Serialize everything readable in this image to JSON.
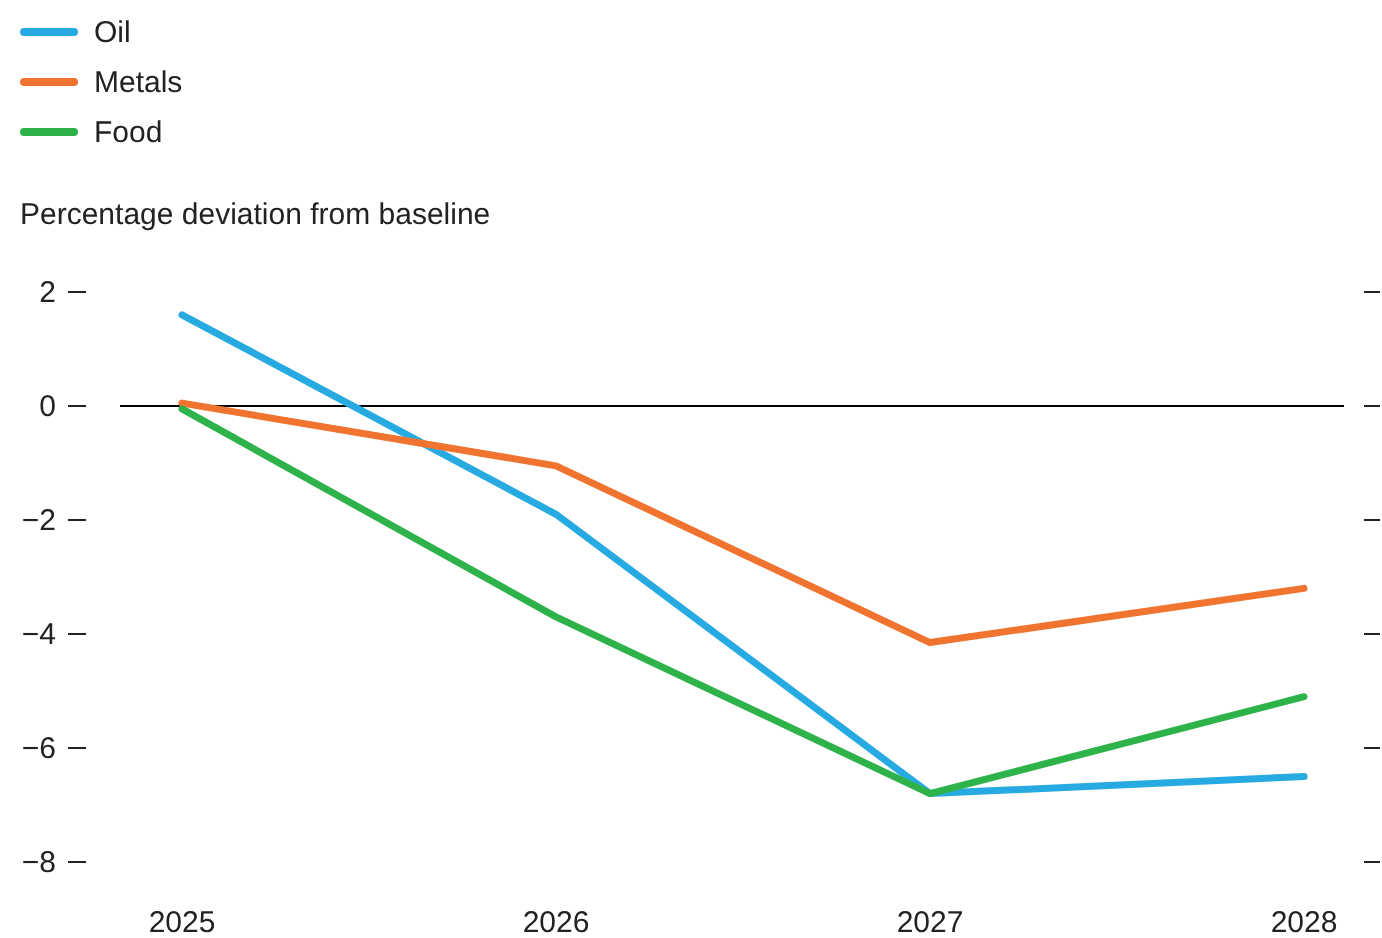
{
  "chart_data": {
    "type": "line",
    "ylabel": "Percentage deviation from baseline",
    "categories": [
      "2025",
      "2026",
      "2027",
      "2028"
    ],
    "series": [
      {
        "name": "Oil",
        "color": "#27aae1",
        "values": [
          1.6,
          -1.9,
          -6.8,
          -6.5
        ]
      },
      {
        "name": "Metals",
        "color": "#f07430",
        "values": [
          0.05,
          -1.05,
          -4.15,
          -3.2
        ]
      },
      {
        "name": "Food",
        "color": "#2eb24a",
        "values": [
          -0.05,
          -3.7,
          -6.8,
          -5.1
        ]
      }
    ],
    "ylim": [
      -8,
      2
    ],
    "yticks": [
      {
        "value": 2,
        "label": "2"
      },
      {
        "value": 0,
        "label": "0"
      },
      {
        "value": -2,
        "label": "−2"
      },
      {
        "value": -4,
        "label": "−4"
      },
      {
        "value": -6,
        "label": "−6"
      },
      {
        "value": -8,
        "label": "−8"
      }
    ],
    "ref_lines": [
      {
        "axis": "y",
        "value": 0,
        "color": "#000000"
      }
    ],
    "grid": false,
    "legend": "top left",
    "marker": "none",
    "line_style": "solid"
  }
}
